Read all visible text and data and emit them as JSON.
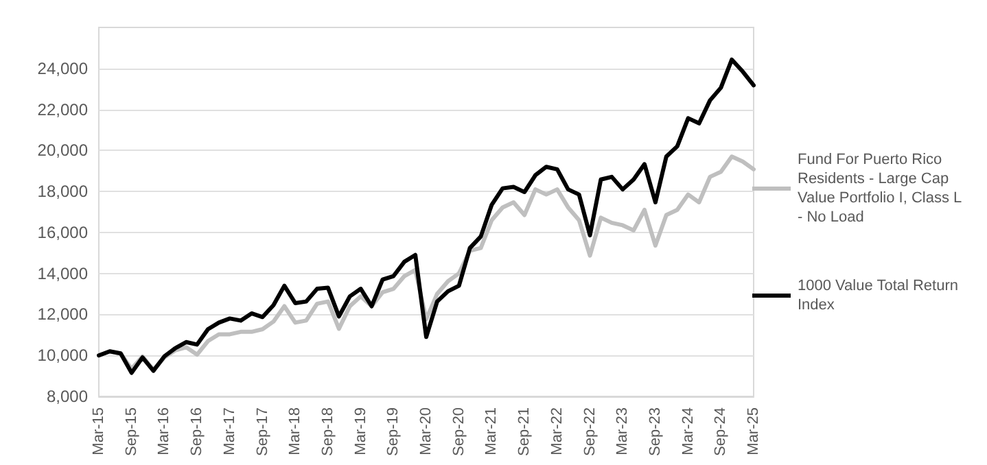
{
  "chart_data": {
    "type": "line",
    "categories": [
      "Mar-15",
      null,
      null,
      "Sep-15",
      null,
      null,
      "Mar-16",
      null,
      null,
      "Sep-16",
      null,
      null,
      "Mar-17",
      null,
      null,
      "Sep-17",
      null,
      null,
      "Mar-18",
      null,
      null,
      "Sep-18",
      null,
      null,
      "Mar-19",
      null,
      null,
      "Sep-19",
      null,
      null,
      "Mar-20",
      null,
      null,
      "Sep-20",
      null,
      null,
      "Mar-21",
      null,
      null,
      "Sep-21",
      null,
      null,
      "Mar-22",
      null,
      null,
      "Sep-22",
      null,
      null,
      "Mar-23",
      null,
      null,
      "Sep-23",
      null,
      null,
      "Mar-24",
      null,
      null,
      "Sep-24",
      null,
      null,
      "Mar-25"
    ],
    "series": [
      {
        "name": "Fund For Puerto Rico Residents - Large Cap Value Portfolio I, Class L - No Load",
        "color": "#bfbfbf",
        "values": [
          10000,
          10200,
          10080,
          9350,
          9950,
          9300,
          9900,
          10250,
          10400,
          10040,
          10700,
          11030,
          11030,
          11150,
          11150,
          11280,
          11650,
          12400,
          11600,
          11700,
          12520,
          12630,
          11300,
          12400,
          12880,
          12400,
          13080,
          13250,
          13870,
          14170,
          11760,
          13000,
          13620,
          14000,
          15110,
          15240,
          16600,
          17220,
          17470,
          16850,
          18100,
          17850,
          18100,
          17220,
          16600,
          14870,
          16720,
          16470,
          16350,
          16100,
          17100,
          15360,
          16850,
          17100,
          17850,
          17470,
          18710,
          18960,
          19700,
          19460,
          19080
        ]
      },
      {
        "name": "1000 Value Total Return Index",
        "color": "#000000",
        "values": [
          10000,
          10200,
          10100,
          9150,
          9900,
          9250,
          9950,
          10350,
          10650,
          10530,
          11280,
          11600,
          11800,
          11700,
          12050,
          11870,
          12450,
          13400,
          12550,
          12630,
          13250,
          13300,
          11900,
          12880,
          13250,
          12400,
          13700,
          13870,
          14570,
          14900,
          10900,
          12630,
          13130,
          13400,
          15240,
          15800,
          17350,
          18150,
          18220,
          17970,
          18790,
          19200,
          19080,
          18100,
          17850,
          15860,
          18580,
          18710,
          18100,
          18580,
          19330,
          17470,
          19700,
          20200,
          21570,
          21320,
          22440,
          23060,
          24430,
          23850,
          23180
        ]
      }
    ],
    "ylim": [
      8000,
      26000
    ],
    "yticks": [
      {
        "value": 8000,
        "label": "8,000"
      },
      {
        "value": 10000,
        "label": "10,000"
      },
      {
        "value": 12000,
        "label": "12,000"
      },
      {
        "value": 14000,
        "label": "14,000"
      },
      {
        "value": 16000,
        "label": "16,000"
      },
      {
        "value": 18000,
        "label": "18,000"
      },
      {
        "value": 20000,
        "label": "20,000"
      },
      {
        "value": 22000,
        "label": "22,000"
      },
      {
        "value": 24000,
        "label": "24,000"
      }
    ],
    "grid": "y",
    "legend": "right",
    "marker": "none",
    "line_style": "solid"
  }
}
